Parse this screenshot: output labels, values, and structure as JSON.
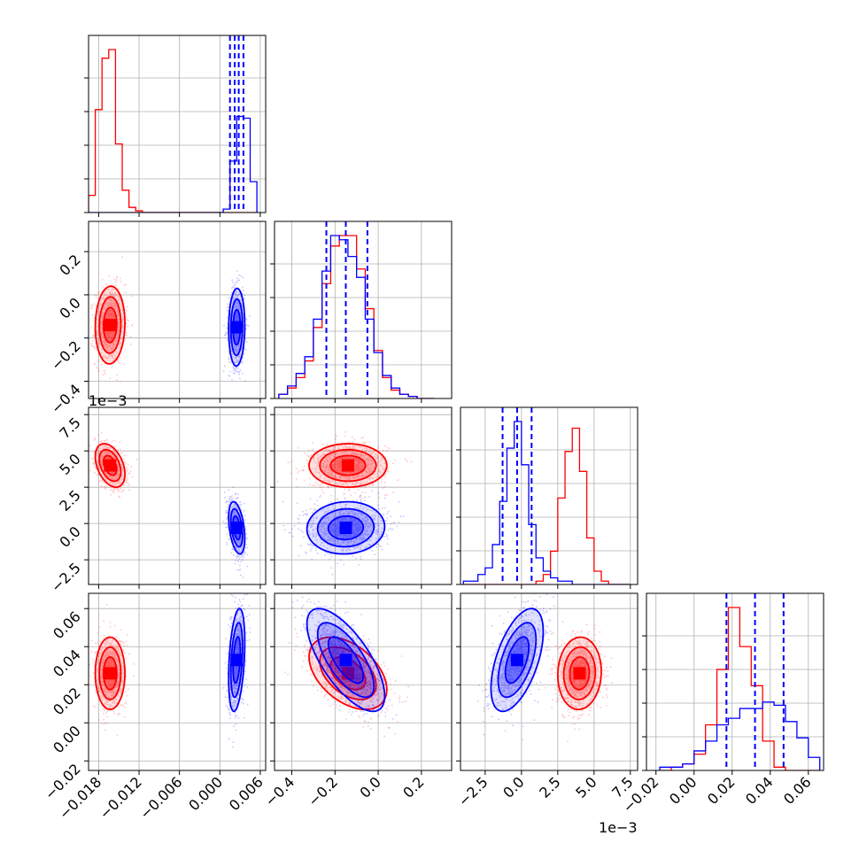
{
  "chart_data": {
    "type": "corner",
    "grid": true,
    "series_colors": {
      "red": "#ff0000",
      "blue": "#0000ff"
    },
    "params": [
      {
        "ticks": [
          "−0.018",
          "−0.012",
          "−0.006",
          "0.000",
          "0.006"
        ],
        "tick_values": [
          -0.018,
          -0.012,
          -0.006,
          0.0,
          0.006
        ],
        "range": [
          -0.0195,
          0.0068
        ],
        "offset_label": ""
      },
      {
        "ticks": [
          "−0.4",
          "−0.2",
          "0.0",
          "0.2"
        ],
        "tick_values": [
          -0.4,
          -0.2,
          0.0,
          0.2
        ],
        "range": [
          -0.48,
          0.34
        ],
        "offset_label": "1e−3"
      },
      {
        "ticks": [
          "−2.5",
          "0.0",
          "2.5",
          "5.0",
          "7.5"
        ],
        "tick_values": [
          -2.5,
          0.0,
          2.5,
          5.0,
          7.5
        ],
        "range": [
          -4.2,
          8.0
        ],
        "offset_label": "1e−3"
      },
      {
        "ticks": [
          "−0.02",
          "0.00",
          "0.02",
          "0.04",
          "0.06"
        ],
        "tick_values": [
          -0.02,
          0.0,
          0.02,
          0.04,
          0.06
        ],
        "range": [
          -0.025,
          0.068
        ],
        "offset_label": ""
      }
    ],
    "series": [
      {
        "color": "#ff0000",
        "mean": [
          -0.0163,
          -0.14,
          4.0,
          0.026
        ],
        "sd": [
          0.0011,
          0.09,
          0.75,
          0.0095
        ]
      },
      {
        "color": "#0000ff",
        "mean": [
          0.0025,
          -0.15,
          -0.3,
          0.033
        ],
        "sd": [
          0.0006,
          0.09,
          0.9,
          0.0135
        ]
      }
    ],
    "quantile_lines": [
      [
        0.0015,
        0.0022,
        0.0028,
        0.0035
      ],
      [
        -0.24,
        -0.15,
        -0.05
      ],
      [
        -1.3,
        -0.3,
        0.7
      ],
      [
        0.017,
        0.032,
        0.047
      ]
    ],
    "histograms": [
      {
        "edges": [
          -0.0195,
          -0.0185,
          -0.0175,
          -0.0165,
          -0.0155,
          -0.0145,
          -0.0135,
          -0.0125,
          -0.0115,
          -0.0105,
          0.0005,
          0.0015,
          0.0025,
          0.0035,
          0.0045,
          0.0055
        ],
        "red": [
          10,
          60,
          90,
          95,
          40,
          13,
          3,
          1,
          0,
          0,
          0,
          0,
          0,
          0,
          0
        ],
        "blue": [
          0,
          0,
          0,
          0,
          0,
          0,
          0,
          0,
          0,
          0,
          2,
          30,
          56,
          55,
          18
        ]
      },
      {
        "edges": [
          -0.46,
          -0.42,
          -0.38,
          -0.34,
          -0.3,
          -0.26,
          -0.22,
          -0.18,
          -0.14,
          -0.1,
          -0.06,
          -0.02,
          0.02,
          0.06,
          0.1,
          0.14,
          0.18,
          0.22,
          0.26
        ],
        "red": [
          2,
          5,
          10,
          18,
          34,
          55,
          73,
          78,
          78,
          62,
          43,
          23,
          10,
          4,
          2,
          1,
          0,
          0
        ],
        "blue": [
          2,
          6,
          12,
          20,
          38,
          61,
          78,
          76,
          68,
          58,
          38,
          22,
          11,
          5,
          2,
          1,
          0,
          0
        ]
      },
      {
        "edges": [
          -4.0,
          -3.5,
          -3.0,
          -2.5,
          -2.0,
          -1.5,
          -1.0,
          -0.5,
          0.0,
          0.5,
          1.0,
          1.5,
          2.0,
          2.5,
          3.0,
          3.5,
          4.0,
          4.5,
          5.0,
          5.5,
          6.0,
          6.5,
          7.0,
          7.5
        ],
        "red": [
          0,
          0,
          0,
          0,
          0,
          0,
          0,
          0,
          0,
          0,
          1,
          3,
          10,
          26,
          40,
          47,
          34,
          14,
          4,
          1,
          0,
          0,
          0
        ],
        "blue": [
          1,
          1,
          3,
          5,
          12,
          25,
          41,
          49,
          36,
          18,
          8,
          4,
          2,
          1,
          1,
          0,
          0,
          0,
          0,
          0,
          0,
          0,
          0
        ]
      },
      {
        "edges": [
          -0.018,
          -0.012,
          -0.006,
          0.0,
          0.006,
          0.012,
          0.018,
          0.024,
          0.03,
          0.036,
          0.042,
          0.048,
          0.054,
          0.06,
          0.066
        ],
        "red": [
          0,
          1,
          2,
          5,
          14,
          31,
          50,
          38,
          26,
          9,
          1,
          0,
          0,
          0
        ],
        "blue": [
          1,
          1,
          2,
          6,
          9,
          14,
          16,
          19,
          19,
          21,
          20,
          15,
          10,
          4
        ]
      }
    ]
  }
}
